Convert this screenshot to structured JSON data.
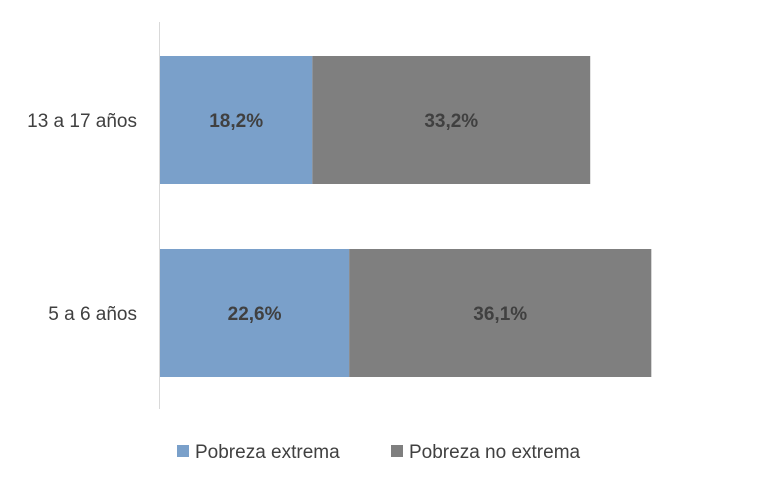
{
  "chart_data": {
    "type": "bar",
    "orientation": "horizontal",
    "stacked": true,
    "categories": [
      "13 a 17 años",
      "5 a 6 años"
    ],
    "series": [
      {
        "name": "Pobreza extrema",
        "values": [
          18.2,
          22.6
        ],
        "labels": [
          "18,2%",
          "22,6%"
        ],
        "color": "#7aa0ca"
      },
      {
        "name": "Pobreza no extrema",
        "values": [
          33.2,
          36.1
        ],
        "labels": [
          "33,2%",
          "36,1%"
        ],
        "color": "#7f7f7f"
      }
    ],
    "xlim": [
      0,
      72
    ],
    "grid": false,
    "legend_position": "bottom"
  }
}
